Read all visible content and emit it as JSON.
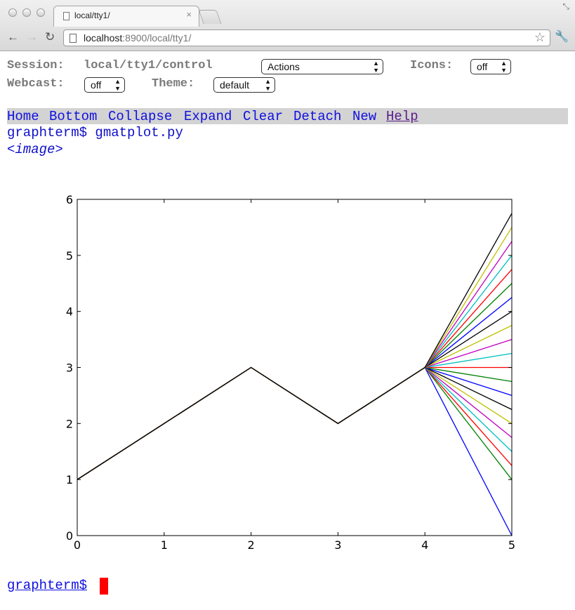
{
  "browser": {
    "tab_title": "local/tty1/",
    "url_host": "localhost",
    "url_rest": ":8900/local/tty1/"
  },
  "controls": {
    "session_label": "Session:",
    "session_value": "local/tty1/control",
    "actions_select": "Actions",
    "icons_label": "Icons:",
    "icons_select": "off",
    "webcast_label": "Webcast:",
    "webcast_select": "off",
    "theme_label": "Theme:",
    "theme_select": "default"
  },
  "menu": {
    "items": [
      "Home",
      "Bottom",
      "Collapse",
      "Expand",
      "Clear",
      "Detach",
      "New"
    ],
    "help": "Help"
  },
  "terminal": {
    "command": "graphterm$ gmatplot.py",
    "image_tag": "<image>",
    "prompt": "graphterm$"
  },
  "chart_data": {
    "type": "line",
    "title": "",
    "xlabel": "",
    "ylabel": "",
    "xlim": [
      0,
      5
    ],
    "ylim": [
      0,
      6
    ],
    "xticks": [
      0,
      1,
      2,
      3,
      4,
      5
    ],
    "yticks": [
      0,
      1,
      2,
      3,
      4,
      5,
      6
    ],
    "grid": false,
    "base_x": [
      0,
      1,
      2,
      3,
      4
    ],
    "base_y": [
      1,
      2,
      3,
      2,
      3
    ],
    "fan_x": 5,
    "fan_end_values": [
      5.75,
      5.5,
      5.25,
      5.0,
      4.75,
      4.5,
      4.25,
      4.0,
      3.75,
      3.5,
      3.25,
      3.0,
      2.75,
      2.5,
      2.25,
      2.0,
      1.75,
      1.5,
      1.25,
      1.0,
      0.0
    ],
    "colors": [
      "#000000",
      "#bfbf00",
      "#bf00bf",
      "#00bfbf",
      "#ff0000",
      "#008000",
      "#0000ff",
      "#000000",
      "#bfbf00",
      "#bf00bf",
      "#00bfbf",
      "#ff0000",
      "#008000",
      "#0000ff",
      "#000000",
      "#bfbf00",
      "#bf00bf",
      "#00bfbf",
      "#ff0000",
      "#008000",
      "#0000ff"
    ]
  }
}
